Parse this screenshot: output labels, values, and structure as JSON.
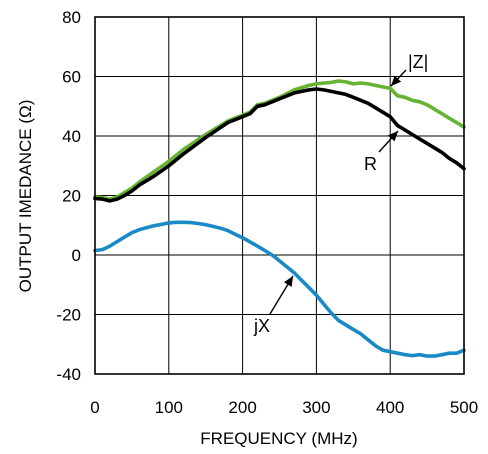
{
  "chart_data": {
    "type": "line",
    "xlabel": "FREQUENCY (MHz)",
    "ylabel": "OUTPUT IMEDANCE (Ω)",
    "xlim": [
      0,
      500
    ],
    "ylim": [
      -40,
      80
    ],
    "x_ticks": [
      0,
      100,
      200,
      300,
      400,
      500
    ],
    "y_ticks": [
      -40,
      -20,
      0,
      20,
      40,
      60,
      80
    ],
    "x_tick_labels": [
      "0",
      "100",
      "200",
      "300",
      "400",
      "500"
    ],
    "y_tick_labels": [
      "-40",
      "-20",
      "0",
      "20",
      "40",
      "60",
      "80"
    ],
    "grid": true,
    "series": [
      {
        "name": "|Z|",
        "color": "#66b431",
        "x": [
          0,
          10,
          20,
          30,
          40,
          50,
          60,
          80,
          100,
          120,
          150,
          180,
          200,
          210,
          220,
          230,
          240,
          250,
          270,
          290,
          300,
          310,
          320,
          330,
          340,
          350,
          360,
          370,
          380,
          390,
          400,
          410,
          420,
          430,
          440,
          450,
          460,
          470,
          480,
          490,
          500
        ],
        "y": [
          19.5,
          19.3,
          18.8,
          19.5,
          21.0,
          22.5,
          24.5,
          28.0,
          31.5,
          35.5,
          40.5,
          45.0,
          47.0,
          48.0,
          50.5,
          51.0,
          52.0,
          53.0,
          55.5,
          57.0,
          57.5,
          57.8,
          58.0,
          58.5,
          58.2,
          57.5,
          57.8,
          57.5,
          57.0,
          56.5,
          56.0,
          53.5,
          53.0,
          52.0,
          51.5,
          50.5,
          49.0,
          47.5,
          46.0,
          44.5,
          43.0
        ]
      },
      {
        "name": "R",
        "color": "#000000",
        "x": [
          0,
          10,
          20,
          30,
          40,
          50,
          60,
          80,
          100,
          120,
          150,
          180,
          200,
          210,
          220,
          230,
          240,
          250,
          270,
          290,
          300,
          310,
          320,
          330,
          340,
          350,
          360,
          370,
          380,
          390,
          400,
          410,
          420,
          430,
          440,
          450,
          460,
          470,
          480,
          490,
          500
        ],
        "y": [
          19.0,
          18.8,
          18.2,
          18.8,
          20.0,
          21.5,
          23.5,
          26.5,
          30.0,
          34.0,
          39.5,
          44.5,
          46.5,
          47.5,
          50.0,
          50.5,
          51.5,
          52.5,
          54.5,
          55.5,
          55.8,
          55.5,
          55.0,
          54.5,
          54.0,
          53.0,
          52.0,
          51.0,
          49.5,
          48.0,
          46.5,
          43.5,
          42.0,
          40.5,
          39.0,
          37.5,
          36.0,
          34.5,
          32.5,
          31.0,
          29.0
        ]
      },
      {
        "name": "jX",
        "color": "#1a8ac6",
        "x": [
          0,
          10,
          20,
          30,
          40,
          50,
          60,
          70,
          80,
          90,
          100,
          110,
          120,
          130,
          140,
          150,
          160,
          170,
          180,
          190,
          200,
          210,
          220,
          230,
          240,
          250,
          260,
          270,
          280,
          290,
          300,
          310,
          320,
          330,
          340,
          350,
          360,
          370,
          380,
          390,
          400,
          410,
          420,
          430,
          440,
          450,
          460,
          470,
          480,
          490,
          500
        ],
        "y": [
          1.5,
          1.8,
          3.0,
          4.5,
          6.0,
          7.5,
          8.5,
          9.2,
          9.8,
          10.3,
          10.8,
          11.0,
          11.0,
          10.9,
          10.6,
          10.2,
          9.6,
          9.0,
          8.2,
          7.0,
          5.8,
          4.4,
          3.0,
          1.5,
          0.0,
          -2.0,
          -4.0,
          -6.0,
          -8.5,
          -11.0,
          -13.5,
          -16.5,
          -19.5,
          -22.0,
          -23.5,
          -25.0,
          -26.5,
          -28.5,
          -30.5,
          -32.0,
          -32.5,
          -33.0,
          -33.5,
          -33.8,
          -33.5,
          -34.0,
          -34.0,
          -33.5,
          -33.0,
          -33.0,
          -32.0
        ]
      }
    ],
    "annotations": [
      "|Z|",
      "R",
      "jX"
    ]
  }
}
